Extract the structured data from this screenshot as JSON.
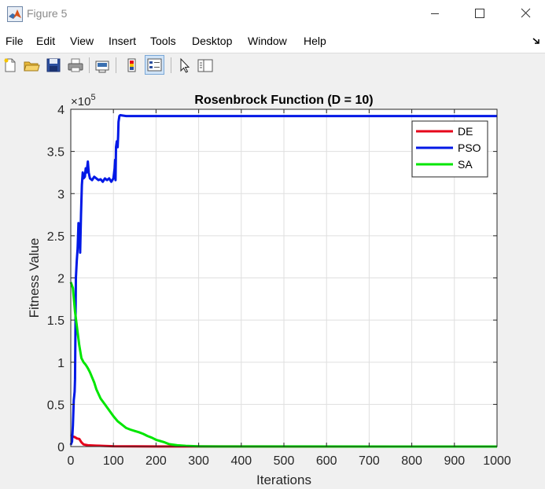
{
  "window": {
    "title": "Figure 5"
  },
  "menu": [
    "File",
    "Edit",
    "View",
    "Insert",
    "Tools",
    "Desktop",
    "Window",
    "Help"
  ],
  "toolbar": {
    "icons": [
      "new-figure-icon",
      "open-file-icon",
      "save-icon",
      "print-icon",
      "link-plot-icon",
      "insert-colorbar-icon",
      "insert-legend-icon",
      "edit-plot-pointer-icon",
      "property-inspector-icon"
    ],
    "legend_toggle_active": true
  },
  "chart_data": {
    "type": "line",
    "title": "Rosenbrock Function (D = 10)",
    "xlabel": "Iterations",
    "ylabel": "Fitness Value",
    "y_exponent_label": "×10",
    "y_exponent": "5",
    "xlim": [
      0,
      1000
    ],
    "ylim": [
      0,
      400000
    ],
    "x_ticks": [
      "0",
      "100",
      "200",
      "300",
      "400",
      "500",
      "600",
      "700",
      "800",
      "900",
      "1000"
    ],
    "y_ticks": [
      "0",
      "0.5",
      "1",
      "1.5",
      "2",
      "2.5",
      "3",
      "3.5",
      "4"
    ],
    "grid": true,
    "legend_position": "top-right",
    "series": [
      {
        "name": "DE",
        "color": "#e6001a",
        "x": [
          0,
          5,
          10,
          15,
          20,
          25,
          30,
          40,
          60,
          80,
          100,
          150,
          200,
          250,
          1000
        ],
        "y": [
          14000,
          12000,
          11000,
          9500,
          9000,
          5000,
          2500,
          1500,
          1000,
          700,
          400,
          200,
          100,
          50,
          0
        ]
      },
      {
        "name": "PSO",
        "color": "#0018e6",
        "x": [
          0,
          3,
          5,
          7,
          9,
          10,
          12,
          14,
          16,
          18,
          20,
          21,
          22,
          24,
          26,
          28,
          30,
          33,
          35,
          37,
          40,
          42,
          45,
          50,
          55,
          60,
          65,
          70,
          75,
          80,
          85,
          90,
          95,
          100,
          103,
          104,
          105,
          106,
          108,
          110,
          111,
          112,
          114,
          116,
          130,
          200,
          1000
        ],
        "y": [
          2000,
          6000,
          25000,
          55000,
          65000,
          80000,
          200000,
          220000,
          235000,
          265000,
          240000,
          250000,
          230000,
          275000,
          310000,
          325000,
          318000,
          320000,
          330000,
          325000,
          338000,
          325000,
          318000,
          316000,
          320000,
          318000,
          316000,
          317000,
          314000,
          318000,
          316000,
          318000,
          314000,
          318000,
          330000,
          340000,
          316000,
          355000,
          362000,
          355000,
          368000,
          385000,
          392000,
          393000,
          392000,
          392000,
          392000
        ]
      },
      {
        "name": "SA",
        "color": "#00e600",
        "x": [
          0,
          5,
          10,
          15,
          20,
          25,
          30,
          35,
          40,
          45,
          50,
          55,
          60,
          70,
          80,
          90,
          100,
          110,
          120,
          130,
          140,
          150,
          160,
          170,
          180,
          190,
          200,
          210,
          220,
          230,
          250,
          270,
          300,
          350,
          1000
        ],
        "y": [
          195000,
          188000,
          160000,
          140000,
          120000,
          105000,
          100000,
          97000,
          93000,
          88000,
          82000,
          76000,
          68000,
          57000,
          50000,
          43000,
          36000,
          30000,
          26000,
          22000,
          20000,
          18500,
          17000,
          15000,
          12500,
          10500,
          8000,
          6500,
          5000,
          3000,
          1500,
          800,
          300,
          100,
          0
        ]
      }
    ]
  }
}
